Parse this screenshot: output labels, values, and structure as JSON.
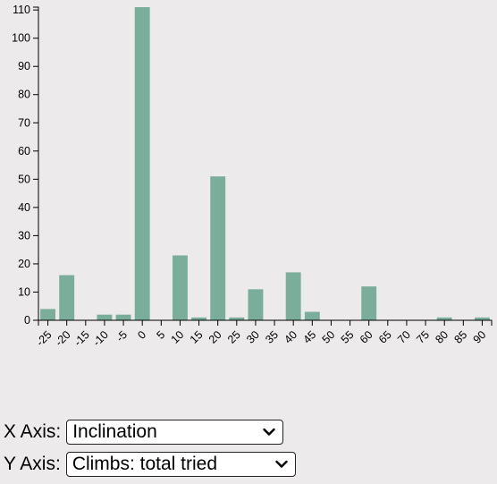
{
  "chart_data": {
    "type": "bar",
    "categories": [
      "-25",
      "-20",
      "-15",
      "-10",
      "-5",
      "0",
      "5",
      "10",
      "15",
      "20",
      "25",
      "30",
      "35",
      "40",
      "45",
      "50",
      "55",
      "60",
      "65",
      "70",
      "75",
      "80",
      "85",
      "90"
    ],
    "values": [
      4,
      16,
      0,
      2,
      2,
      111,
      0,
      23,
      1,
      51,
      1,
      11,
      0,
      17,
      3,
      0,
      0,
      12,
      0,
      0,
      0,
      1,
      0,
      1
    ],
    "y_ticks": [
      "0",
      "10",
      "20",
      "30",
      "40",
      "50",
      "60",
      "70",
      "80",
      "90",
      "100",
      "110"
    ],
    "ylim": [
      0,
      111
    ],
    "bar_color": "#7aae9b",
    "grid": false,
    "title": "",
    "xlabel": "",
    "ylabel": ""
  },
  "controls": {
    "x_axis": {
      "label": "X Axis:",
      "selected": "Inclination"
    },
    "y_axis": {
      "label": "Y Axis:",
      "selected": "Climbs: total tried"
    }
  }
}
